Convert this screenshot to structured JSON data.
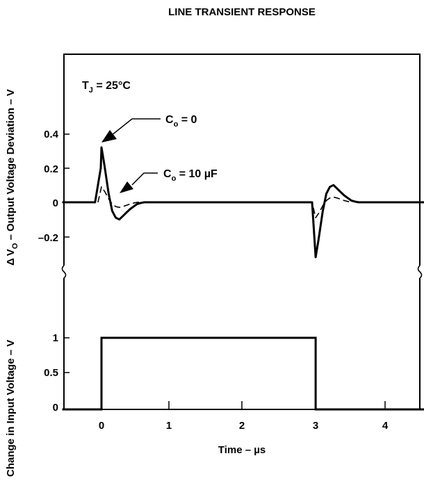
{
  "chart_data": [
    {
      "type": "line",
      "title": "LINE TRANSIENT RESPONSE",
      "xlabel": "",
      "ylabel": "ΔVₒ – Output Voltage Deviation – V",
      "ylabel_parts": {
        "delta": "Δ",
        "v": "V",
        "sub": "O",
        "rest": " – Output Voltage Deviation – V"
      },
      "x_range": [
        -0.55,
        4.55
      ],
      "ylim": [
        -0.38,
        0.87
      ],
      "y_ticks": [
        -0.2,
        0,
        0.2,
        0.4
      ],
      "y_tick_labels": [
        "–0.2",
        "0",
        "0.2",
        "0.4"
      ],
      "grid": false,
      "annotations": {
        "temp": {
          "main": "T",
          "sub": "J",
          "rest": " = 25°C"
        },
        "co_zero": {
          "main": "C",
          "sub": "o",
          "rest": " = 0"
        },
        "co_10uf": {
          "main": "C",
          "sub": "o",
          "rest": " = 10 µF"
        }
      },
      "series": [
        {
          "style": "solid",
          "x": [
            -0.55,
            -0.09,
            -0.01,
            0.0,
            0.04,
            0.1,
            0.15,
            0.2,
            0.25,
            0.3,
            0.35,
            0.4,
            0.45,
            0.5,
            0.55,
            0.6,
            2.95,
            3.0,
            3.04,
            3.1,
            3.15,
            3.2,
            3.25,
            3.3,
            3.35,
            3.4,
            3.45,
            3.5,
            3.55,
            3.6,
            4.55
          ],
          "y": [
            0,
            0,
            0.2,
            0.32,
            0.22,
            0.05,
            -0.05,
            -0.09,
            -0.1,
            -0.08,
            -0.06,
            -0.04,
            -0.025,
            -0.01,
            -0.004,
            0,
            0,
            -0.32,
            -0.22,
            -0.05,
            0.05,
            0.09,
            0.1,
            0.08,
            0.06,
            0.04,
            0.025,
            0.01,
            0.004,
            0,
            0
          ]
        },
        {
          "style": "dashed",
          "x": [
            -0.05,
            0.0,
            0.05,
            0.1,
            0.15,
            0.2,
            0.25,
            0.3,
            0.35,
            0.4,
            0.45,
            0.5,
            2.95,
            3.0,
            3.05,
            3.1,
            3.15,
            3.2,
            3.25,
            3.3,
            3.35,
            3.4,
            3.45,
            3.5
          ],
          "y": [
            0,
            0.09,
            0.06,
            0.02,
            -0.01,
            -0.025,
            -0.03,
            -0.025,
            -0.018,
            -0.01,
            -0.005,
            0,
            0,
            -0.09,
            -0.06,
            -0.02,
            0.01,
            0.025,
            0.03,
            0.025,
            0.018,
            0.01,
            0.005,
            0
          ]
        }
      ]
    },
    {
      "type": "line",
      "title": "",
      "xlabel": "Time – µs",
      "ylabel": "Change in Input Voltage – V",
      "x_range": [
        -0.55,
        4.55
      ],
      "ylim": [
        0,
        1.95
      ],
      "x_ticks": [
        0,
        1,
        2,
        3,
        4
      ],
      "x_tick_labels": [
        "0",
        "1",
        "2",
        "3",
        "4"
      ],
      "y_ticks": [
        0,
        0.5,
        1
      ],
      "y_tick_labels": [
        "0",
        "0.5",
        "1"
      ],
      "grid": false,
      "series": [
        {
          "style": "solid",
          "x": [
            -0.55,
            0.0,
            0.0,
            3.0,
            3.0,
            4.55
          ],
          "y": [
            0,
            0,
            1,
            1,
            0,
            0
          ]
        }
      ]
    }
  ]
}
